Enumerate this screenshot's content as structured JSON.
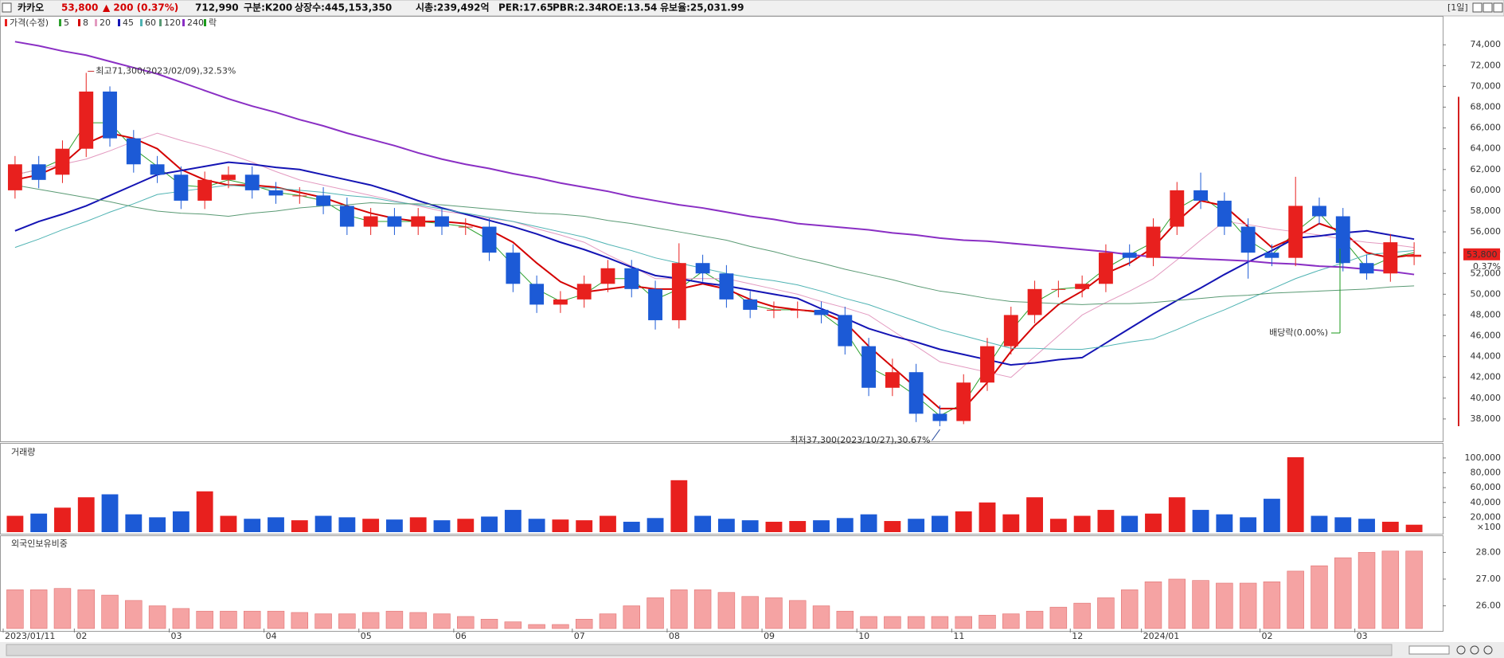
{
  "header": {
    "title": "카카오",
    "price": "53,800",
    "change": "▲ 200 (0.37%)",
    "volume": "712,990",
    "fields": [
      "구분:K200",
      "상장수:445,153,350",
      "시총:239,492억",
      "PER:17.65",
      "PBR:2.34",
      "ROE:13.54",
      "유보율:25,031.99"
    ],
    "period": "[1일]",
    "change_pct": "0.37%"
  },
  "chart_data": [
    {
      "type": "candlestick",
      "name": "가격(수정)",
      "up_color": "#e8201e",
      "down_color": "#1c5ad6",
      "open": [
        60000,
        62500,
        61500,
        64000,
        69500,
        65000,
        62500,
        61500,
        59000,
        61000,
        61500,
        60000,
        59500,
        59500,
        58500,
        56500,
        57500,
        56500,
        57500,
        56500,
        56500,
        54000,
        51000,
        49000,
        49500,
        51000,
        52500,
        50500,
        47500,
        53000,
        52000,
        49500,
        48500,
        48500,
        48500,
        48000,
        45000,
        41000,
        42500,
        38500,
        37800,
        41500,
        45000,
        48000,
        50500,
        50500,
        51000,
        54000,
        53500,
        56500,
        60000,
        59000,
        56500,
        54000,
        53500,
        58500,
        57500,
        53000,
        52000,
        53600
      ],
      "high": [
        63300,
        63300,
        64800,
        71300,
        70000,
        65800,
        63300,
        62300,
        61800,
        62300,
        62300,
        60800,
        60300,
        60300,
        59300,
        58300,
        58300,
        58300,
        58300,
        57300,
        57300,
        54800,
        51800,
        50300,
        51800,
        53300,
        53300,
        51300,
        54900,
        53800,
        52800,
        50300,
        49300,
        49300,
        49300,
        48800,
        45800,
        43800,
        43300,
        39300,
        42300,
        45800,
        48800,
        51300,
        51300,
        51800,
        54800,
        54800,
        57300,
        60800,
        61700,
        59800,
        57300,
        54800,
        61300,
        59300,
        58300,
        53800,
        55800,
        55000
      ],
      "low": [
        59200,
        60200,
        60700,
        63200,
        64200,
        61700,
        60700,
        58200,
        58200,
        60200,
        59200,
        58700,
        58700,
        57700,
        55700,
        55700,
        55700,
        55700,
        55700,
        55700,
        53200,
        50200,
        48200,
        48200,
        48700,
        50200,
        49700,
        46600,
        46700,
        51200,
        48700,
        47700,
        47700,
        47700,
        47200,
        44200,
        40200,
        40200,
        37700,
        37300,
        37500,
        40700,
        44200,
        47200,
        49700,
        49700,
        50200,
        52700,
        52700,
        55700,
        58200,
        55700,
        51500,
        52700,
        52700,
        56700,
        52200,
        51400,
        51200,
        52800
      ],
      "close": [
        62500,
        61000,
        64000,
        69500,
        65000,
        62500,
        61500,
        59000,
        61000,
        61500,
        60000,
        59500,
        59500,
        58500,
        56500,
        57500,
        56500,
        57500,
        56500,
        56500,
        54000,
        51000,
        49000,
        49500,
        51000,
        52500,
        50500,
        47500,
        53000,
        52000,
        49500,
        48500,
        48500,
        48500,
        48000,
        45000,
        41000,
        42500,
        38500,
        37800,
        41500,
        45000,
        48000,
        50500,
        50500,
        51000,
        54000,
        53500,
        56500,
        60000,
        59000,
        56500,
        54000,
        53500,
        58500,
        57500,
        53000,
        52000,
        55000,
        53800
      ],
      "lines": [
        {
          "name": "5",
          "color": "#2ca02c",
          "width": 1,
          "values": [
            61500,
            62000,
            63000,
            66500,
            66500,
            64000,
            62300,
            60500,
            60300,
            61000,
            60500,
            59800,
            59500,
            59000,
            57600,
            57000,
            57000,
            57000,
            56800,
            56500,
            55200,
            52800,
            50500,
            49300,
            50000,
            51500,
            51500,
            49500,
            50500,
            52200,
            50800,
            49000,
            48500,
            48500,
            48200,
            46500,
            43000,
            41800,
            40200,
            38300,
            39500,
            43000,
            46500,
            49200,
            50500,
            50700,
            52500,
            53800,
            55000,
            58200,
            59500,
            57800,
            55200,
            53800,
            56000,
            57800,
            55300,
            52500,
            53500,
            54000
          ]
        },
        {
          "name": "8",
          "color": "#d40000",
          "width": 2,
          "values": [
            61000,
            61500,
            62500,
            64500,
            65500,
            65000,
            64000,
            62000,
            61000,
            60500,
            60500,
            60300,
            59800,
            59300,
            58500,
            57800,
            57300,
            57000,
            57000,
            56800,
            56200,
            55000,
            53000,
            51200,
            50200,
            50500,
            50800,
            50500,
            50500,
            51000,
            50500,
            49500,
            48800,
            48500,
            48300,
            47300,
            45000,
            43000,
            41000,
            39000,
            39000,
            41500,
            44500,
            47000,
            49000,
            50300,
            52000,
            53000,
            54500,
            57000,
            59000,
            58500,
            56500,
            54500,
            55500,
            56800,
            56000,
            54000,
            53500,
            53800
          ]
        },
        {
          "name": "20",
          "color": "#e39ac0",
          "width": 1,
          "values": [
            61500,
            62000,
            62500,
            63000,
            63800,
            64700,
            65500,
            64800,
            64200,
            63500,
            62700,
            61800,
            61000,
            60500,
            60000,
            59500,
            59000,
            58500,
            58000,
            57700,
            57300,
            57000,
            56300,
            55700,
            55000,
            53800,
            52700,
            51500,
            51500,
            51500,
            51500,
            51000,
            50500,
            50000,
            49300,
            48700,
            48000,
            46500,
            45000,
            43500,
            43000,
            42500,
            42000,
            44000,
            46000,
            48000,
            49200,
            50300,
            51500,
            53300,
            55200,
            57000,
            56700,
            56300,
            56000,
            55700,
            55300,
            55000,
            54800,
            54500
          ]
        },
        {
          "name": "45",
          "color": "#1414b4",
          "width": 2,
          "values": [
            56100,
            57000,
            57700,
            58500,
            59500,
            60500,
            61500,
            61900,
            62300,
            62700,
            62500,
            62200,
            62000,
            61500,
            61000,
            60500,
            59800,
            59000,
            58300,
            57700,
            57100,
            56500,
            55800,
            55000,
            54300,
            53500,
            52600,
            51800,
            51500,
            51100,
            50800,
            50400,
            50000,
            49600,
            48600,
            47700,
            46700,
            46000,
            45400,
            44700,
            44200,
            43700,
            43200,
            43400,
            43700,
            43900,
            45300,
            46700,
            48100,
            49400,
            50600,
            51900,
            53100,
            54200,
            55400,
            55600,
            55900,
            56100,
            55700,
            55300
          ]
        },
        {
          "name": "60",
          "color": "#4fb3b3",
          "width": 1,
          "values": [
            54500,
            55300,
            56200,
            57000,
            57900,
            58700,
            59600,
            59900,
            60200,
            60500,
            60300,
            60200,
            60000,
            59800,
            59500,
            59300,
            58900,
            58600,
            58200,
            57800,
            57400,
            57000,
            56500,
            56000,
            55500,
            54800,
            54200,
            53500,
            53000,
            52500,
            52000,
            51600,
            51300,
            50900,
            50300,
            49600,
            49000,
            48200,
            47400,
            46600,
            46000,
            45400,
            44800,
            44800,
            44700,
            44700,
            45000,
            45400,
            45700,
            46600,
            47600,
            48500,
            49500,
            50500,
            51500,
            52300,
            53000,
            53800,
            54000,
            54200
          ]
        },
        {
          "name": "120",
          "color": "#5a9a74",
          "width": 1,
          "values": [
            60500,
            60100,
            59700,
            59300,
            58900,
            58400,
            58000,
            57800,
            57700,
            57500,
            57800,
            58000,
            58300,
            58500,
            58600,
            58800,
            58700,
            58700,
            58600,
            58400,
            58200,
            58000,
            57800,
            57700,
            57500,
            57100,
            56800,
            56400,
            56000,
            55600,
            55200,
            54600,
            54100,
            53500,
            53000,
            52400,
            51900,
            51400,
            50800,
            50300,
            50000,
            49600,
            49300,
            49200,
            49100,
            49000,
            49100,
            49100,
            49200,
            49400,
            49600,
            49800,
            49900,
            50100,
            50200,
            50300,
            50400,
            50500,
            50700,
            50800
          ]
        },
        {
          "name": "240",
          "color": "#8a2fc4",
          "width": 2,
          "values": [
            74300,
            73900,
            73400,
            73000,
            72400,
            71800,
            71200,
            70400,
            69600,
            68800,
            68100,
            67500,
            66800,
            66200,
            65500,
            64900,
            64300,
            63600,
            63000,
            62500,
            62100,
            61600,
            61200,
            60700,
            60300,
            59900,
            59400,
            59000,
            58600,
            58300,
            57900,
            57500,
            57200,
            56800,
            56600,
            56400,
            56200,
            55900,
            55700,
            55400,
            55200,
            55100,
            54900,
            54700,
            54500,
            54300,
            54100,
            53800,
            53600,
            53500,
            53400,
            53300,
            53200,
            53000,
            52900,
            52700,
            52600,
            52400,
            52200,
            51900
          ]
        }
      ],
      "legend_extra": "락",
      "legend_extra_color": "#1a9a1a",
      "annotations": [
        "최고71,300(2023/02/09),32.53%",
        "최저37,300(2023/10/27),30.67%",
        "배당락(0.00%)"
      ],
      "ylim": [
        36000,
        76700
      ],
      "yticks": [
        {
          "value": 38000,
          "label": "38,000"
        },
        {
          "value": 40000,
          "label": "40,000"
        },
        {
          "value": 42000,
          "label": "42,000"
        },
        {
          "value": 44000,
          "label": "44,000"
        },
        {
          "value": 46000,
          "label": "46,000"
        },
        {
          "value": 48000,
          "label": "48,000"
        },
        {
          "value": 50000,
          "label": "50,000"
        },
        {
          "value": 52000,
          "label": "52,000"
        },
        {
          "value": 54000,
          "label": "54,000"
        },
        {
          "value": 56000,
          "label": "56,000"
        },
        {
          "value": 58000,
          "label": "58,000"
        },
        {
          "value": 60000,
          "label": "60,000"
        },
        {
          "value": 62000,
          "label": "62,000"
        },
        {
          "value": 64000,
          "label": "64,000"
        },
        {
          "value": 66000,
          "label": "66,000"
        },
        {
          "value": 68000,
          "label": "68,000"
        },
        {
          "value": 70000,
          "label": "70,000"
        },
        {
          "value": 72000,
          "label": "72,000"
        },
        {
          "value": 74000,
          "label": "74,000"
        }
      ]
    },
    {
      "type": "bar",
      "title": "거래량",
      "title_color": "#9a9a20",
      "unit_label": "×100",
      "values": [
        22000,
        25000,
        33000,
        47000,
        51000,
        24000,
        20000,
        28000,
        55000,
        22000,
        18000,
        20000,
        16000,
        22000,
        20000,
        18000,
        17000,
        20000,
        16000,
        18000,
        21000,
        30000,
        18000,
        17000,
        16000,
        22000,
        14000,
        19000,
        70000,
        22000,
        18000,
        16000,
        14000,
        15000,
        16000,
        19000,
        24000,
        15000,
        18000,
        22000,
        28000,
        40000,
        24000,
        47000,
        18000,
        22000,
        30000,
        22000,
        25000,
        47000,
        30000,
        24000,
        20000,
        45000,
        101000,
        22000,
        20000,
        18000,
        14000,
        10000
      ],
      "ylim": [
        0,
        116000
      ],
      "yticks": [
        {
          "value": 20000,
          "label": "20,000"
        },
        {
          "value": 40000,
          "label": "40,000"
        },
        {
          "value": 60000,
          "label": "60,000"
        },
        {
          "value": 80000,
          "label": "80,000"
        },
        {
          "value": 100000,
          "label": "100,000"
        }
      ]
    },
    {
      "type": "bar",
      "title": "외국인보유비중",
      "title_color": "#e05a5a",
      "color": "#f5a3a3",
      "categories": [
        "2023/01/11",
        null,
        null,
        "02",
        null,
        null,
        null,
        "03",
        null,
        null,
        null,
        "04",
        null,
        null,
        null,
        "05",
        null,
        null,
        null,
        "06",
        null,
        null,
        null,
        null,
        "07",
        null,
        null,
        null,
        "08",
        null,
        null,
        null,
        "09",
        null,
        null,
        null,
        "10",
        null,
        null,
        null,
        "11",
        null,
        null,
        null,
        null,
        "12",
        null,
        null,
        "2024/01",
        null,
        null,
        null,
        null,
        "02",
        null,
        null,
        null,
        "03",
        null,
        null
      ],
      "values": [
        26.6,
        26.6,
        26.65,
        26.6,
        26.4,
        26.2,
        26.0,
        25.9,
        25.8,
        25.8,
        25.8,
        25.8,
        25.75,
        25.7,
        25.7,
        25.75,
        25.8,
        25.75,
        25.7,
        25.6,
        25.5,
        25.4,
        25.3,
        25.3,
        25.5,
        25.7,
        26.0,
        26.3,
        26.6,
        26.6,
        26.5,
        26.35,
        26.3,
        26.2,
        26.0,
        25.8,
        25.6,
        25.6,
        25.6,
        25.6,
        25.6,
        25.65,
        25.7,
        25.8,
        25.95,
        26.1,
        26.3,
        26.6,
        26.9,
        27.0,
        26.95,
        26.85,
        26.85,
        26.9,
        27.3,
        27.5,
        27.8,
        28.0,
        28.05,
        28.05
      ],
      "ylim": [
        25.15,
        28.55
      ],
      "yticks": [
        {
          "value": 26,
          "label": "26.00"
        },
        {
          "value": 27,
          "label": "27.00"
        },
        {
          "value": 28,
          "label": "28.00"
        }
      ]
    }
  ]
}
